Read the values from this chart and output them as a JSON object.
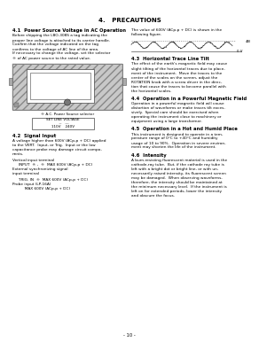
{
  "title": "4.   PRECAUTIONS",
  "page_num": "- 10 -",
  "bg_color": "#ffffff",
  "sections": {
    "s41_title": "4.1  Power Source Voltage in AC Operation",
    "s41_body_lines": [
      "Before shipping the LBO-308S a tag indicating the",
      "proper line voltage is attached to its carrier handle.",
      "Confirm that the voltage indicated on the tag",
      "confirms to the voltage of AC line of the area.",
      "If necessary to change the voltage, set the selector",
      "® of AC power source to the rated value."
    ],
    "s41_right1_lines": [
      "The value of 600V (ACp-p + DC) is shown in the",
      "following figure."
    ],
    "s41_right2_label": "480V",
    "s41_right3": "0 V",
    "s42_title": "4.2  Signal Input",
    "s42_body_lines": [
      "A voltage higher than 600V (ACp-p + DC) applied",
      "to the VERT.  Input, or Trig.  Input or the low",
      "capacitance probe may damage circuit compo-",
      "nents."
    ],
    "s42_input_lines": [
      "Vertical input terminal",
      "     INPUT  ® ,  ®  MAX 600V (ACp-p + DC)",
      "External synchronizing signal",
      "input terminal"
    ],
    "s42_trig_lines": [
      "     TRIG. IN  ®  MAX 600V (ACp-p + DC)",
      "Probe input (LP-16A)",
      "          MAX 600V (ACp-p + DC)"
    ],
    "s43_title": "4.3  Horizontal Trace Line Tilt",
    "s43_body_lines": [
      "The effect of the earth's magnetic field may cause",
      "slight tilting of the horizontal traces due to place-",
      "ment of the instrument.  Move the traces to the",
      "center of the scales on the screen, adjust the",
      "ROTATION knob with a screw driver in the direc-",
      "tion that cause the traces to become parallel with",
      "the horizontal scales."
    ],
    "s44_title": "4.4  Operation in a Powerful Magnetic Field",
    "s44_body_lines": [
      "Operation in a powerful magnetic field will cause",
      "distortion of waveforms or make traces tilt exces-",
      "sively.  Special care should be exercised when",
      "operating the instrument close to machinery or",
      "equipment using a large transformer."
    ],
    "s45_title": "4.5  Operation in a Hot and Humid Place",
    "s45_body_lines": [
      "This instrument is designed to operate in a tem-",
      "perature range of 0°C to +40°C and humidity",
      "usage of 10 to 90%.  Operation in severe environ-",
      "ment may shorten the life of the instrument."
    ],
    "s46_title": "4.6  Intensity",
    "s46_body_lines": [
      "A burn-resisting fluorescent material is used in the",
      "cathode-ray tube.  But, if the cathode ray tube is",
      "left with a bright dot or bright line, or with un-",
      "necessarily raised intensity, its fluorescent screen",
      "may be damaged.  When observing waveforms,",
      "therefore, the intensity should be maintained at",
      "the minimum necessary level.  If the instrument is",
      "left on for extended periods, lower the intensity",
      "and obscure the focus."
    ],
    "fig_caption": "® A.C. Power Source selector",
    "fig_label_lines": [
      "SET LINE VOLTAGE",
      "  --   ---",
      "110V    240V"
    ]
  }
}
